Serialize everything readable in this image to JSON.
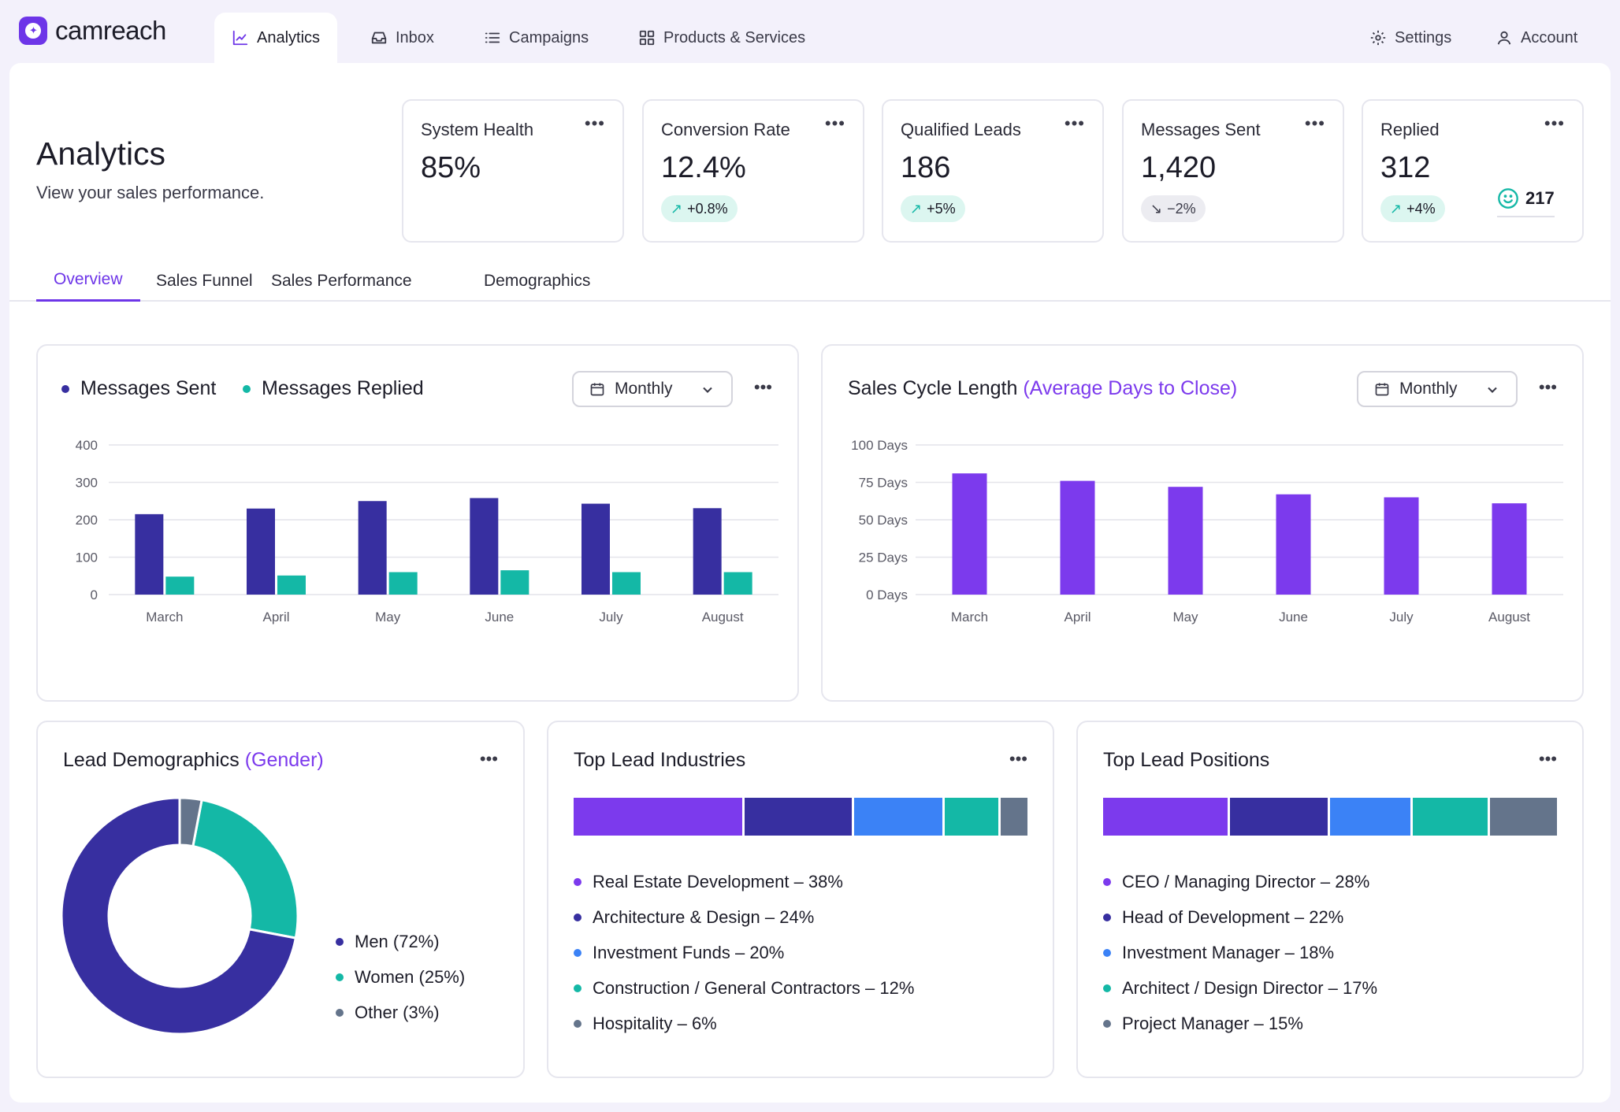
{
  "app": {
    "name": "camreach"
  },
  "nav": {
    "tabs": [
      {
        "label": "Analytics",
        "icon": "chart-line-icon",
        "active": true
      },
      {
        "label": "Inbox",
        "icon": "inbox-icon"
      },
      {
        "label": "Campaigns",
        "icon": "list-icon"
      },
      {
        "label": "Products & Services",
        "icon": "grid-icon"
      }
    ],
    "right": [
      {
        "label": "Settings",
        "icon": "gear-icon"
      },
      {
        "label": "Account",
        "icon": "user-icon"
      }
    ]
  },
  "page": {
    "title": "Analytics",
    "subtitle": "View your sales performance."
  },
  "kpis": [
    {
      "label": "System Health",
      "value": "85%"
    },
    {
      "label": "Conversion Rate",
      "value": "12.4%",
      "badge": "+0.8%",
      "trend": "up"
    },
    {
      "label": "Qualified Leads",
      "value": "186",
      "badge": "+5%",
      "trend": "up"
    },
    {
      "label": "Messages Sent",
      "value": "1,420",
      "badge": "−2%",
      "trend": "down"
    },
    {
      "label": "Replied",
      "value": "312",
      "badge": "+4%",
      "trend": "up",
      "extra_value": "217",
      "extra_icon": "smiley-icon"
    }
  ],
  "subtabs": [
    {
      "label": "Overview",
      "active": true
    },
    {
      "label": "Sales Funnel"
    },
    {
      "label": "Sales Performance"
    },
    {
      "label": "Demographics"
    }
  ],
  "messages_card": {
    "legend": [
      "Messages Sent",
      "Messages Replied"
    ],
    "period": "Monthly"
  },
  "cycle_card": {
    "title": "Sales Cycle Length",
    "title_accent": "(Average Days to Close)",
    "period": "Monthly"
  },
  "demographics_card": {
    "title": "Lead Demographics",
    "title_accent": "(Gender)",
    "legend": [
      "Men (72%)",
      "Women (25%)",
      "Other (3%)"
    ]
  },
  "industries_card": {
    "title": "Top Lead Industries",
    "items": [
      "Real Estate Development – 38%",
      "Architecture & Design – 24%",
      "Investment Funds – 20%",
      "Construction / General Contractors – 12%",
      "Hospitality – 6%"
    ]
  },
  "positions_card": {
    "title": "Top Lead Positions",
    "items": [
      "CEO / Managing Director – 28%",
      "Head of Development – 22%",
      "Investment Manager – 18%",
      "Architect / Design Director – 17%",
      "Project Manager – 15%"
    ]
  },
  "colors": {
    "brand": "#6d35e8",
    "navy": "#372fa0",
    "teal": "#14b8a6",
    "violet": "#7c3aed",
    "blue": "#3b82f6",
    "slate": "#64748b"
  },
  "chart_data": [
    {
      "type": "bar",
      "categories": [
        "March",
        "April",
        "May",
        "June",
        "July",
        "August"
      ],
      "series": [
        {
          "name": "Messages Sent",
          "values": [
            215,
            230,
            250,
            258,
            243,
            231
          ]
        },
        {
          "name": "Messages Replied",
          "values": [
            48,
            51,
            60,
            65,
            60,
            60
          ]
        }
      ],
      "yticks": [
        "0",
        "100",
        "200",
        "300",
        "400"
      ],
      "ylim": [
        0,
        400
      ],
      "grid": true
    },
    {
      "type": "bar",
      "title": "Sales Cycle Length (Average Days to Close)",
      "categories": [
        "March",
        "April",
        "May",
        "June",
        "July",
        "August"
      ],
      "values": [
        81,
        76,
        72,
        67,
        65,
        61
      ],
      "yticks": [
        "0 Days",
        "25 Days",
        "50 Days",
        "75 Days",
        "100 Days"
      ],
      "ylim": [
        0,
        100
      ],
      "grid": true
    },
    {
      "type": "pie",
      "title": "Lead Demographics (Gender)",
      "labels": [
        "Men",
        "Women",
        "Other"
      ],
      "values": [
        72,
        25,
        3
      ]
    },
    {
      "type": "bar",
      "title": "Top Lead Industries",
      "labels": [
        "Real Estate Development",
        "Architecture & Design",
        "Investment Funds",
        "Construction / General Contractors",
        "Hospitality"
      ],
      "values": [
        38,
        24,
        20,
        12,
        6
      ]
    },
    {
      "type": "bar",
      "title": "Top Lead Positions",
      "labels": [
        "CEO / Managing Director",
        "Head of Development",
        "Investment Manager",
        "Architect / Design Director",
        "Project Manager"
      ],
      "values": [
        28,
        22,
        18,
        17,
        15
      ]
    }
  ]
}
